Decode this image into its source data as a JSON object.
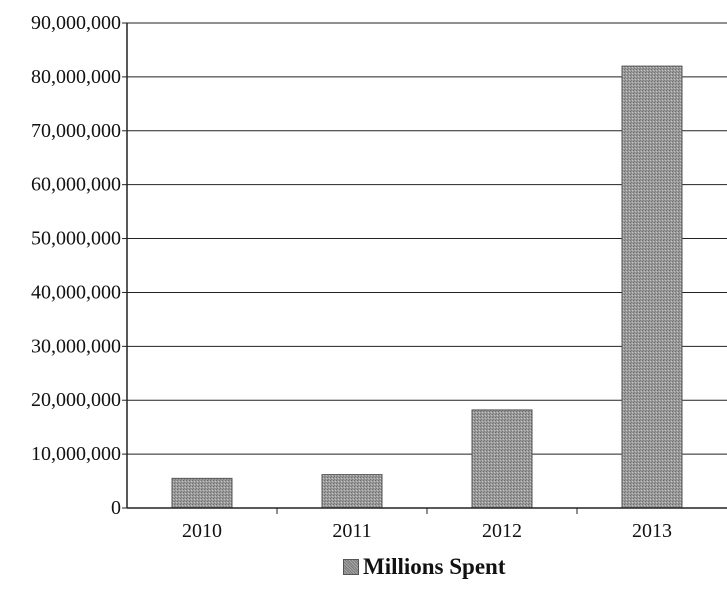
{
  "chart_data": {
    "type": "bar",
    "title": "",
    "xlabel": "",
    "ylabel": "",
    "categories": [
      "2010",
      "2011",
      "2012",
      "2013"
    ],
    "series": [
      {
        "name": "Millions Spent",
        "values": [
          5500000,
          6200000,
          18200000,
          82000000
        ]
      }
    ],
    "ylim": [
      0,
      90000000
    ],
    "yticks": [
      0,
      10000000,
      20000000,
      30000000,
      40000000,
      50000000,
      60000000,
      70000000,
      80000000,
      90000000
    ],
    "ytick_labels": [
      "0",
      "10,000,000",
      "20,000,000",
      "30,000,000",
      "40,000,000",
      "50,000,000",
      "60,000,000",
      "70,000,000",
      "80,000,000",
      "90,000,000"
    ],
    "grid": true,
    "legend_position": "bottom-center",
    "bar_color": "#8e8e8e"
  }
}
